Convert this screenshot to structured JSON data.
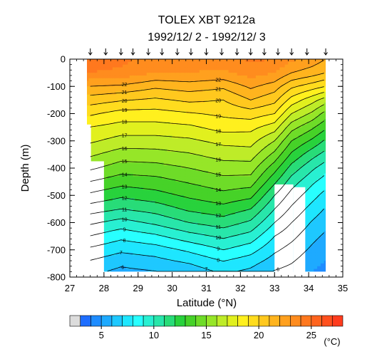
{
  "chart_data": {
    "type": "heatmap",
    "title": "TOLEX XBT 9212a",
    "subtitle": "1992/12/ 2 - 1992/12/ 3",
    "xlabel": "Latitude (°N)",
    "ylabel": "Depth (m)",
    "xlim": [
      27,
      35
    ],
    "ylim": [
      -800,
      0
    ],
    "xticks": [
      27,
      28,
      29,
      30,
      31,
      32,
      33,
      34,
      35
    ],
    "xtick_labels": [
      "27",
      "28",
      "29",
      "30",
      "31",
      "32",
      "33",
      "34",
      "35"
    ],
    "yticks": [
      0,
      -100,
      -200,
      -300,
      -400,
      -500,
      -600,
      -700,
      -800
    ],
    "ytick_labels": [
      "0",
      "-100",
      "-200",
      "-300",
      "-400",
      "-500",
      "-600",
      "-700",
      "-800"
    ],
    "colorbar": {
      "unit": "(°C)",
      "min": 3,
      "max": 28,
      "step": 1,
      "tick_values": [
        5,
        10,
        15,
        20,
        25
      ],
      "tick_labels": [
        "5",
        "10",
        "15",
        "20",
        "25"
      ],
      "colors": [
        "#1e6eff",
        "#1e8cff",
        "#1eaaff",
        "#1ec8ff",
        "#1ee6ff",
        "#28ffff",
        "#28f0d2",
        "#28e6aa",
        "#28dc78",
        "#28d23c",
        "#46d228",
        "#6edc28",
        "#96e628",
        "#beec28",
        "#e1f01e",
        "#fff01e",
        "#ffdc1e",
        "#ffc81e",
        "#ffb41e",
        "#ffa01e",
        "#ff8c1e",
        "#ff781e",
        "#ff641e",
        "#ff501e",
        "#ff3c1e"
      ]
    },
    "station_latitudes": [
      27.6,
      28.05,
      28.5,
      28.85,
      29.3,
      29.7,
      30.15,
      30.55,
      31.0,
      31.45,
      31.9,
      32.3,
      32.7,
      33.1,
      33.5,
      33.95,
      34.5
    ],
    "isotherm_labels": [
      "22",
      "21",
      "20",
      "19",
      "18",
      "17",
      "16",
      "15",
      "14",
      "13",
      "12",
      "11",
      "10",
      "9",
      "8",
      "7",
      "6"
    ],
    "temperature_profiles": {
      "depths_m": [
        0,
        50,
        100,
        150,
        200,
        250,
        300,
        350,
        400,
        450,
        500,
        550,
        600,
        650,
        700,
        750,
        800
      ],
      "stations": [
        {
          "lat": 27.55,
          "temps": [
            24.5,
            24.0,
            22.0,
            20.5,
            19.2,
            18.0,
            17.2,
            16.2,
            15.2,
            14.0,
            12.8,
            11.5,
            10.2,
            9.0,
            7.8,
            6.8,
            6.0
          ]
        },
        {
          "lat": 28.5,
          "temps": [
            24.3,
            23.8,
            21.8,
            20.1,
            18.6,
            17.6,
            16.6,
            15.5,
            14.5,
            13.4,
            12.2,
            11.0,
            9.6,
            8.3,
            7.2,
            6.2,
            5.4
          ]
        },
        {
          "lat": 29.5,
          "temps": [
            23.5,
            23.0,
            21.2,
            19.8,
            18.6,
            17.6,
            16.6,
            15.6,
            14.6,
            13.6,
            12.6,
            11.4,
            10.2,
            8.8,
            7.5,
            6.5,
            5.6
          ]
        },
        {
          "lat": 30.5,
          "temps": [
            23.5,
            23.0,
            21.5,
            20.2,
            18.9,
            17.8,
            16.8,
            15.9,
            15.0,
            14.1,
            13.2,
            12.2,
            11.0,
            9.6,
            8.2,
            7.0,
            6.0
          ]
        },
        {
          "lat": 31.5,
          "temps": [
            23.6,
            22.8,
            21.2,
            20.0,
            19.2,
            18.4,
            17.3,
            16.4,
            15.5,
            14.6,
            13.7,
            12.6,
            11.5,
            10.2,
            9.0,
            7.8,
            6.8
          ]
        },
        {
          "lat": 32.3,
          "temps": [
            24.2,
            23.5,
            22.2,
            21.0,
            19.5,
            18.3,
            17.4,
            16.5,
            15.5,
            14.5,
            13.3,
            12.0,
            10.8,
            9.6,
            8.4,
            7.3,
            6.4
          ]
        },
        {
          "lat": 33.0,
          "temps": [
            24.0,
            23.0,
            21.5,
            20.3,
            19.0,
            17.5,
            16.0,
            14.7,
            13.4,
            12.2,
            11.0,
            10.0,
            9.0,
            8.0,
            7.2,
            6.4,
            5.6
          ]
        },
        {
          "lat": 33.5,
          "temps": [
            23.2,
            22.0,
            20.2,
            18.6,
            17.0,
            15.4,
            14.0,
            12.8,
            11.6,
            10.5,
            9.6,
            8.8,
            8.0,
            7.3,
            6.6,
            6.0,
            5.4
          ]
        },
        {
          "lat": 34.1,
          "temps": [
            22.6,
            21.5,
            19.5,
            17.4,
            15.8,
            14.2,
            12.8,
            11.4,
            10.2,
            9.2,
            8.4,
            7.6,
            6.9,
            6.3,
            5.8,
            5.3,
            4.8
          ]
        },
        {
          "lat": 34.5,
          "temps": [
            22.0,
            21.0,
            19.0,
            16.5,
            14.6,
            13.2,
            11.8,
            10.6,
            9.4,
            8.5,
            7.6,
            6.9,
            6.3,
            5.8,
            5.3,
            4.9,
            4.5
          ]
        }
      ],
      "max_depth_by_station": [
        {
          "lat": 27.5,
          "max_depth": -240
        },
        {
          "lat": 27.6,
          "max_depth": -375
        },
        {
          "lat": 28.0,
          "max_depth": -780
        },
        {
          "lat": 33.0,
          "max_depth": -460
        },
        {
          "lat": 33.8,
          "max_depth": -470
        },
        {
          "lat": 34.5,
          "max_depth": -780
        }
      ]
    }
  }
}
